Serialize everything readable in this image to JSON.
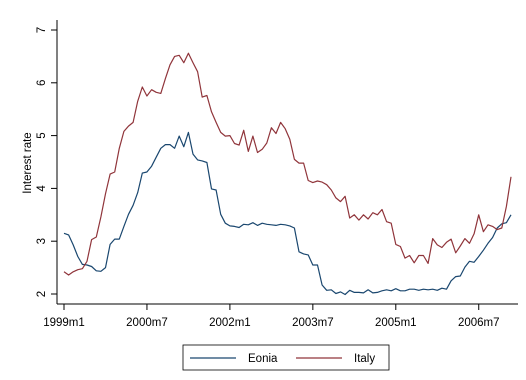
{
  "chart_data": {
    "type": "line",
    "title": "",
    "xlabel": "",
    "ylabel": "Interest rate",
    "xlim": [
      "1999m1",
      "2007m3"
    ],
    "ylim": [
      1.8,
      7.3
    ],
    "grid": false,
    "legend_placement": "bottom",
    "y_ticks": [
      2,
      3,
      4,
      5,
      6,
      7
    ],
    "x_ticks": [
      {
        "label": "1999m1",
        "month_index": 0
      },
      {
        "label": "2000m7",
        "month_index": 18
      },
      {
        "label": "2002m1",
        "month_index": 36
      },
      {
        "label": "2003m7",
        "month_index": 54
      },
      {
        "label": "2005m1",
        "month_index": 72
      },
      {
        "label": "2006m7",
        "month_index": 90
      }
    ],
    "x_start": "1999m1",
    "series": [
      {
        "name": "Eonia",
        "color": "#1a476f",
        "values": [
          3.15,
          3.12,
          2.93,
          2.71,
          2.56,
          2.55,
          2.52,
          2.44,
          2.43,
          2.5,
          2.94,
          3.04,
          3.04,
          3.28,
          3.51,
          3.68,
          3.92,
          4.29,
          4.31,
          4.42,
          4.59,
          4.76,
          4.83,
          4.83,
          4.76,
          4.99,
          4.79,
          5.06,
          4.65,
          4.54,
          4.52,
          4.49,
          3.99,
          3.97,
          3.51,
          3.34,
          3.29,
          3.28,
          3.26,
          3.32,
          3.31,
          3.35,
          3.3,
          3.34,
          3.32,
          3.31,
          3.3,
          3.32,
          3.31,
          3.29,
          3.25,
          2.8,
          2.76,
          2.74,
          2.55,
          2.55,
          2.17,
          2.07,
          2.08,
          2.01,
          2.04,
          1.99,
          2.07,
          2.03,
          2.03,
          2.02,
          2.08,
          2.02,
          2.03,
          2.06,
          2.08,
          2.06,
          2.1,
          2.06,
          2.06,
          2.09,
          2.09,
          2.07,
          2.09,
          2.08,
          2.09,
          2.07,
          2.11,
          2.09,
          2.25,
          2.33,
          2.34,
          2.51,
          2.62,
          2.6,
          2.71,
          2.83,
          2.96,
          3.07,
          3.25,
          3.33,
          3.35,
          3.5
        ]
      },
      {
        "name": "Italy",
        "color": "#90353b",
        "values": [
          2.42,
          2.36,
          2.42,
          2.46,
          2.48,
          2.62,
          3.03,
          3.08,
          3.46,
          3.9,
          4.27,
          4.31,
          4.76,
          5.08,
          5.18,
          5.25,
          5.65,
          5.92,
          5.75,
          5.87,
          5.82,
          5.8,
          6.08,
          6.34,
          6.5,
          6.52,
          6.38,
          6.56,
          6.38,
          6.21,
          5.73,
          5.76,
          5.45,
          5.25,
          5.06,
          4.99,
          5.0,
          4.85,
          4.82,
          5.1,
          4.7,
          4.99,
          4.68,
          4.74,
          4.86,
          5.15,
          5.04,
          5.25,
          5.13,
          4.93,
          4.55,
          4.48,
          4.48,
          4.15,
          4.11,
          4.14,
          4.12,
          4.07,
          3.97,
          3.82,
          3.75,
          3.85,
          3.44,
          3.5,
          3.4,
          3.5,
          3.42,
          3.54,
          3.5,
          3.6,
          3.37,
          3.34,
          2.94,
          2.9,
          2.68,
          2.73,
          2.59,
          2.73,
          2.73,
          2.58,
          3.05,
          2.93,
          2.88,
          2.98,
          3.04,
          2.78,
          2.91,
          3.05,
          2.96,
          3.14,
          3.5,
          3.18,
          3.31,
          3.28,
          3.22,
          3.25,
          3.66,
          4.22
        ]
      }
    ]
  }
}
